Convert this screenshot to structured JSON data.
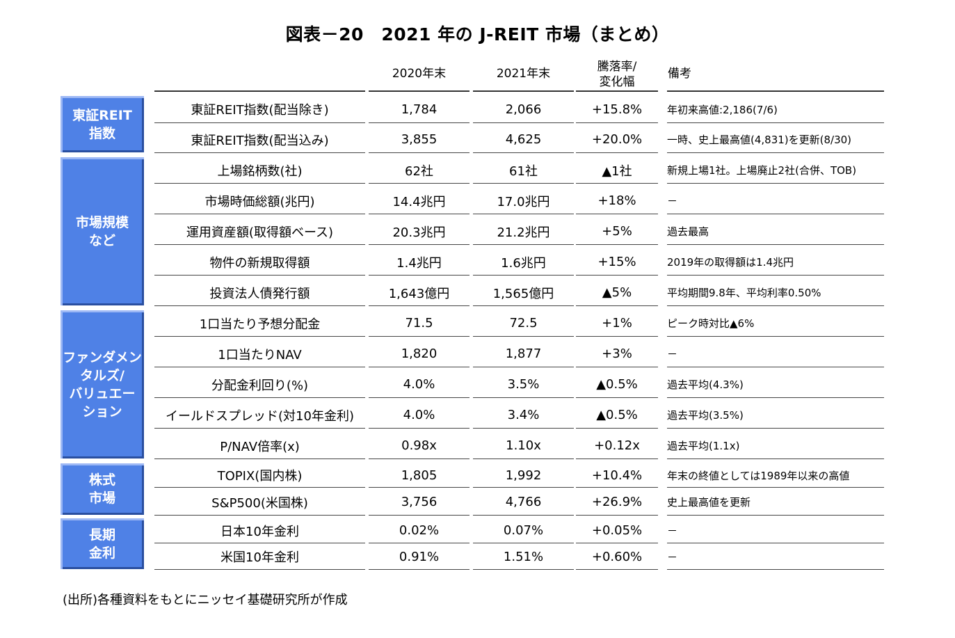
{
  "title": "図表－20　2021 年の J-REIT 市場（まとめ）",
  "headers": {
    "y2020": "2020年末",
    "y2021": "2021年末",
    "change_line1": "騰落率/",
    "change_line2": "変化幅",
    "note": "備考"
  },
  "categories": [
    {
      "label": "東証REIT\n指数"
    },
    {
      "label": "市場規模\nなど"
    },
    {
      "label": "ファンダメン\nタルズ/\nバリュエー\nション"
    },
    {
      "label": "株式\n市場"
    },
    {
      "label": "長期\n金利"
    }
  ],
  "rows": [
    {
      "item": "東証REIT指数(配当除き)",
      "y2020": "1,784",
      "y2021": "2,066",
      "change": "+15.8%",
      "note": "年初来高値:2,186(7/6)"
    },
    {
      "item": "東証REIT指数(配当込み)",
      "y2020": "3,855",
      "y2021": "4,625",
      "change": "+20.0%",
      "note": "一時、史上最高値(4,831)を更新(8/30)"
    },
    {
      "item": "上場銘柄数(社)",
      "y2020": "62社",
      "y2021": "61社",
      "change": "▲1社",
      "note": "新規上場1社。上場廃止2社(合併、TOB)"
    },
    {
      "item": "市場時価総額(兆円)",
      "y2020": "14.4兆円",
      "y2021": "17.0兆円",
      "change": "+18%",
      "note": "－"
    },
    {
      "item": "運用資産額(取得額ベース)",
      "y2020": "20.3兆円",
      "y2021": "21.2兆円",
      "change": "+5%",
      "note": "過去最高"
    },
    {
      "item": "物件の新規取得額",
      "y2020": "1.4兆円",
      "y2021": "1.6兆円",
      "change": "+15%",
      "note": "2019年の取得額は1.4兆円"
    },
    {
      "item": "投資法人債発行額",
      "y2020": "1,643億円",
      "y2021": "1,565億円",
      "change": "▲5%",
      "note": "平均期間9.8年、平均利率0.50%"
    },
    {
      "item": "1口当たり予想分配金",
      "y2020": "71.5",
      "y2021": "72.5",
      "change": "+1%",
      "note": "ピーク時対比▲6%"
    },
    {
      "item": "1口当たりNAV",
      "y2020": "1,820",
      "y2021": "1,877",
      "change": "+3%",
      "note": "－"
    },
    {
      "item": "分配金利回り(%)",
      "y2020": "4.0%",
      "y2021": "3.5%",
      "change": "▲0.5%",
      "note": "過去平均(4.3%)"
    },
    {
      "item": "イールドスプレッド(対10年金利)",
      "y2020": "4.0%",
      "y2021": "3.4%",
      "change": "▲0.5%",
      "note": "過去平均(3.5%)"
    },
    {
      "item": "P/NAV倍率(x)",
      "y2020": "0.98x",
      "y2021": "1.10x",
      "change": "+0.12x",
      "note": "過去平均(1.1x)"
    },
    {
      "item": "TOPIX(国内株)",
      "y2020": "1,805",
      "y2021": "1,992",
      "change": "+10.4%",
      "note": "年末の終値としては1989年以来の高値"
    },
    {
      "item": "S&P500(米国株)",
      "y2020": "3,756",
      "y2021": "4,766",
      "change": "+26.9%",
      "note": "史上最高値を更新"
    },
    {
      "item": "日本10年金利",
      "y2020": "0.02%",
      "y2021": "0.07%",
      "change": "+0.05%",
      "note": "－"
    },
    {
      "item": "米国10年金利",
      "y2020": "0.91%",
      "y2021": "1.51%",
      "change": "+0.60%",
      "note": "－"
    }
  ],
  "source": "(出所)各種資料をもとにニッセイ基礎研究所が作成"
}
